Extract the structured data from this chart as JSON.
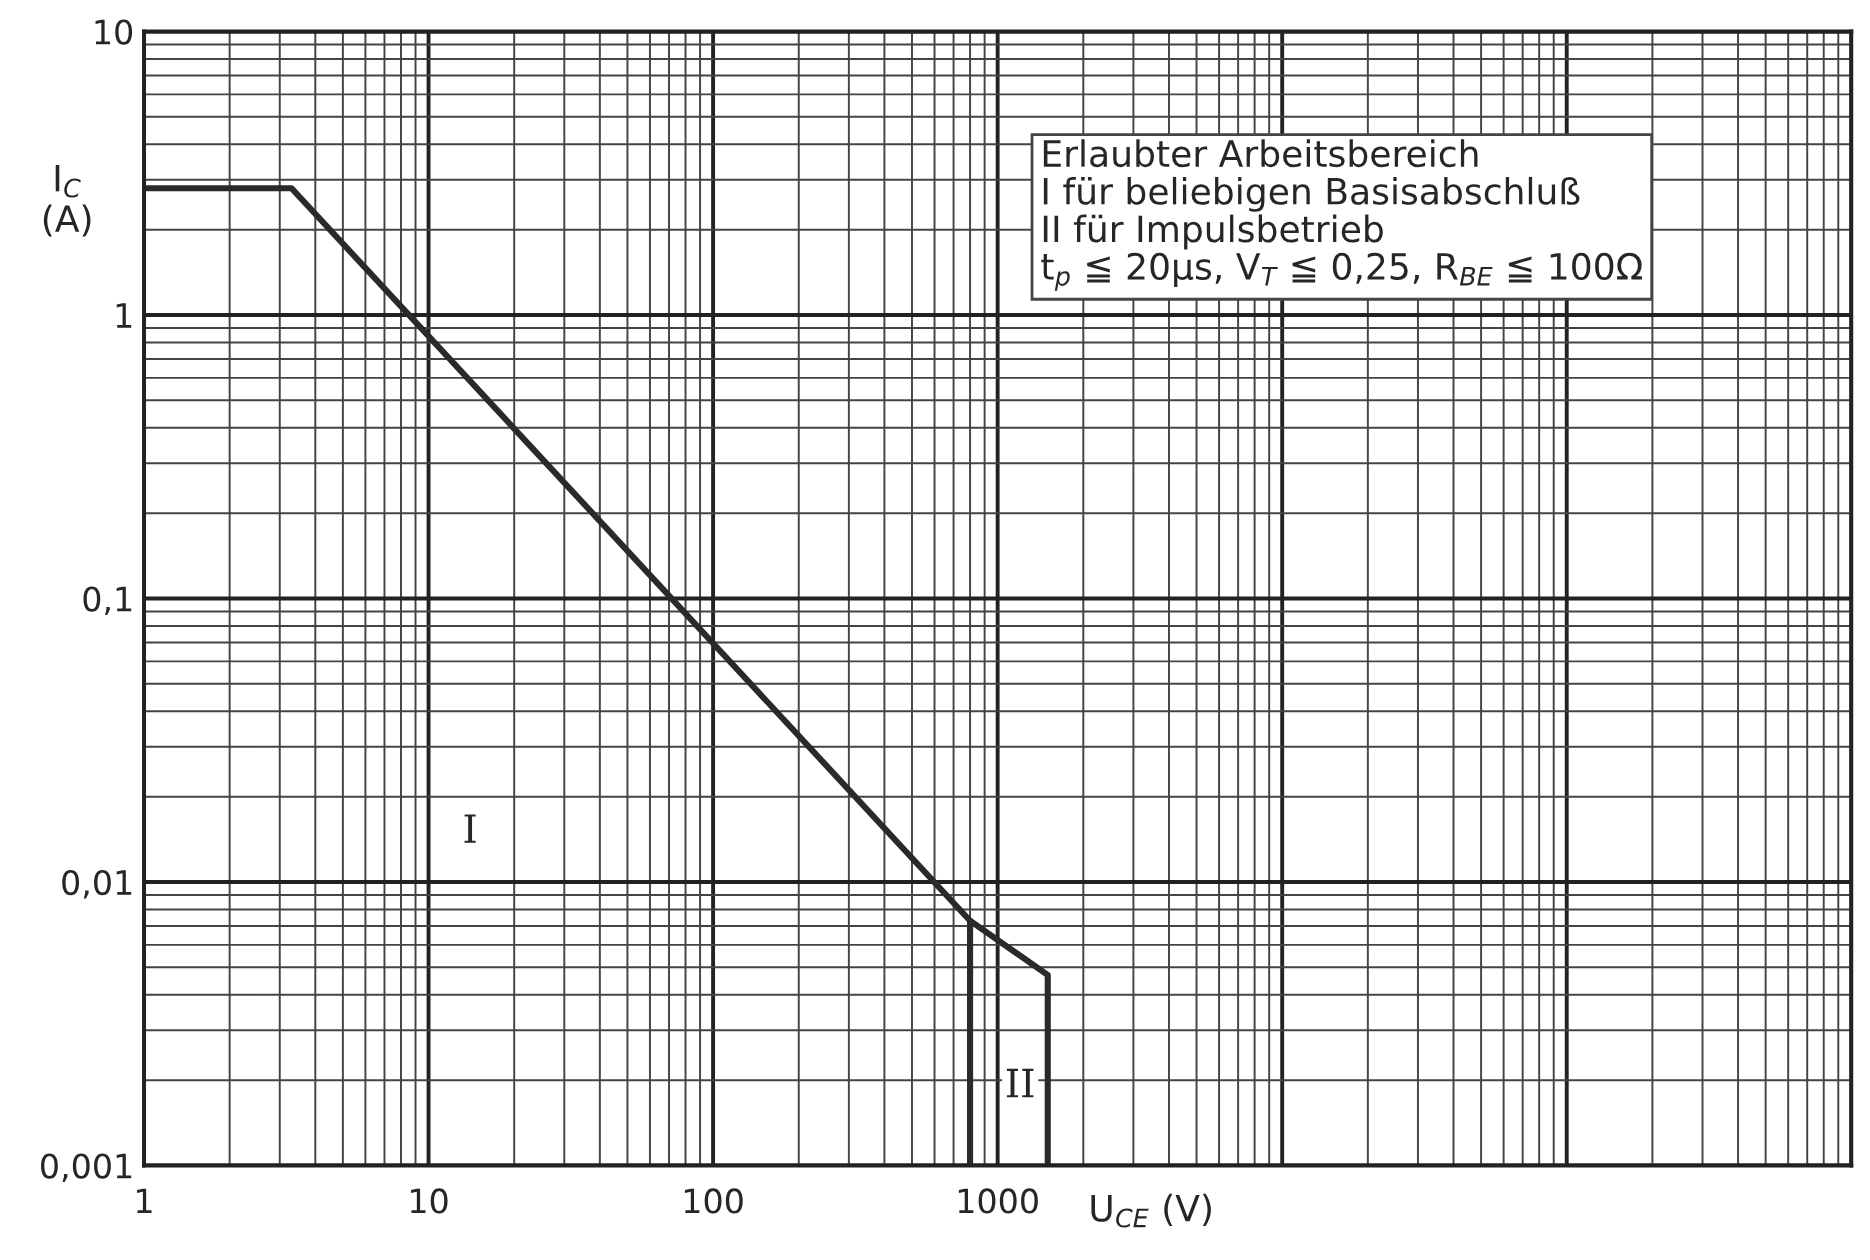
{
  "chart_data": {
    "type": "line",
    "xlabel": "U$_{CE}$ (V)",
    "ylabel": "I$_{C}$\n(A)",
    "log": "xy",
    "grid": true,
    "marker": "none",
    "line_style": "solid",
    "xlim": [
      1,
      1000000
    ],
    "ylim": [
      0.001,
      10
    ],
    "xticks": [
      1,
      10,
      100,
      1000,
      {
        "value": 10000,
        "label": null
      },
      {
        "value": 100000,
        "label": null
      },
      {
        "value": 1000000,
        "label": null
      }
    ],
    "yticks": [
      {
        "value": 0.001,
        "label": "0,001"
      },
      {
        "value": 0.01,
        "label": "0,01"
      },
      {
        "value": 0.1,
        "label": "0,1"
      },
      1,
      10
    ],
    "series": [
      {
        "color": "#2a2a2a",
        "x": [
          1,
          3.3,
          800,
          1500,
          1500
        ],
        "values": [
          2.8,
          2.8,
          0.0073,
          0.0047,
          0.001
        ]
      },
      {
        "color": "#2a2a2a",
        "x": [
          800,
          800
        ],
        "values": [
          0.0073,
          0.001
        ]
      }
    ],
    "annotations": [
      "Erlaubter Arbeitsbereich\nI für beliebigen Basisabschluß\nII für Impulsbetrieb\nt$_{p}$ ≦ 20µs, V$_{T}$ ≦ 0,25, R$_{BE}$ ≦ 100Ω",
      {
        "text": "I",
        "x": 14,
        "y": 0.015
      },
      {
        "text": "II",
        "x": 1200,
        "y": 0.0019
      }
    ]
  }
}
